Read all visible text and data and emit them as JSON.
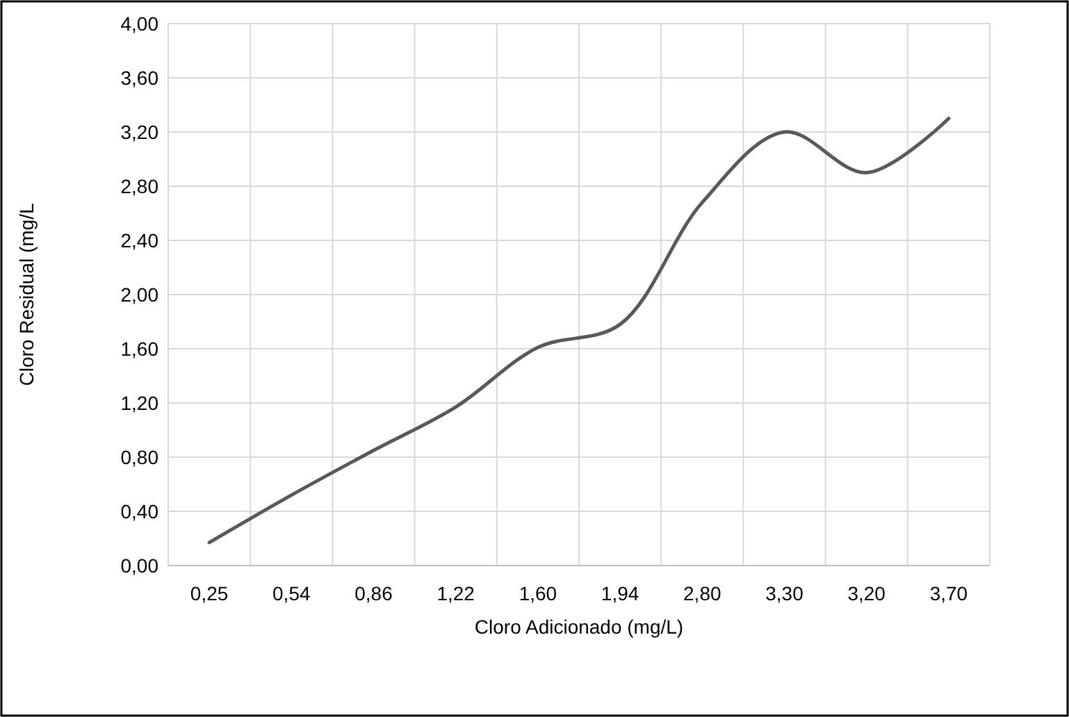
{
  "chart_data": {
    "type": "line",
    "xlabel": "Cloro Adicionado  (mg/L)",
    "ylabel": "Cloro Residual (mg/L",
    "categories": [
      "0,25",
      "0,54",
      "0,86",
      "1,22",
      "1,60",
      "1,94",
      "2,80",
      "3,30",
      "3,20",
      "3,70"
    ],
    "series": [
      {
        "color": "#595959",
        "values": [
          0.17,
          0.52,
          0.85,
          1.17,
          1.61,
          1.78,
          2.68,
          3.2,
          2.9,
          3.3
        ]
      }
    ],
    "ylim": [
      0,
      4
    ],
    "yticks": [
      {
        "value": 0,
        "label": "0,00"
      },
      {
        "value": 0.4,
        "label": "0,40"
      },
      {
        "value": 0.8,
        "label": "0,80"
      },
      {
        "value": 1.2,
        "label": "1,20"
      },
      {
        "value": 1.6,
        "label": "1,60"
      },
      {
        "value": 2,
        "label": "2,00"
      },
      {
        "value": 2.4,
        "label": "2,40"
      },
      {
        "value": 2.8,
        "label": "2,80"
      },
      {
        "value": 3.2,
        "label": "3,20"
      },
      {
        "value": 3.6,
        "label": "3,60"
      },
      {
        "value": 4,
        "label": "4,00"
      }
    ],
    "grid": true,
    "line_style": "solid",
    "marker": "none"
  }
}
